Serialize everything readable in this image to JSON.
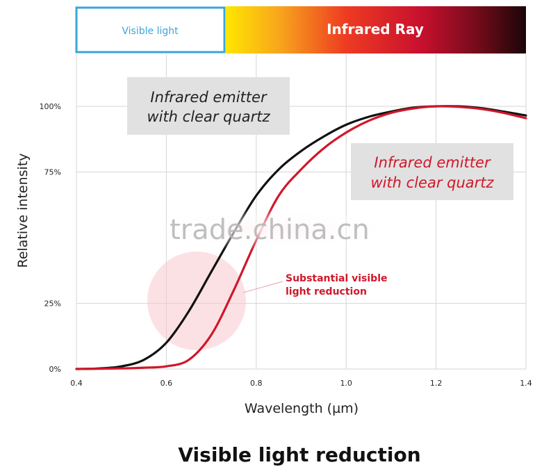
{
  "chart_data": {
    "type": "line",
    "title": "Visible light reduction",
    "xlabel": "Wavelength (µm)",
    "ylabel": "Relative intensity",
    "xlim": [
      0.4,
      1.4
    ],
    "ylim": [
      0,
      100
    ],
    "x_ticks": [
      "0.4",
      "0.6",
      "0.8",
      "1.0",
      "1.2",
      "1.4"
    ],
    "y_ticks": [
      {
        "value": 0,
        "label": "0%"
      },
      {
        "value": 25,
        "label": "25%"
      },
      {
        "value": 75,
        "label": "75%"
      },
      {
        "value": 100,
        "label": "100%"
      }
    ],
    "grid": true,
    "bands": {
      "visible_label": "Visible light",
      "infrared_label": "Infrared Ray"
    },
    "series": [
      {
        "name": "Infrared emitter with clear quartz",
        "color": "#111111",
        "points": [
          [
            0.4,
            0
          ],
          [
            0.45,
            0.2
          ],
          [
            0.5,
            1
          ],
          [
            0.55,
            3.5
          ],
          [
            0.6,
            10
          ],
          [
            0.65,
            22
          ],
          [
            0.7,
            37
          ],
          [
            0.75,
            52
          ],
          [
            0.8,
            66
          ],
          [
            0.85,
            76
          ],
          [
            0.9,
            83
          ],
          [
            0.95,
            88.5
          ],
          [
            1.0,
            93
          ],
          [
            1.05,
            96
          ],
          [
            1.1,
            98
          ],
          [
            1.15,
            99.5
          ],
          [
            1.2,
            100
          ],
          [
            1.25,
            100
          ],
          [
            1.3,
            99.3
          ],
          [
            1.35,
            98
          ],
          [
            1.4,
            96.5
          ]
        ]
      },
      {
        "name": "Infrared emitter with clear quartz",
        "color": "#d0172a",
        "points": [
          [
            0.4,
            0
          ],
          [
            0.5,
            0.2
          ],
          [
            0.55,
            0.5
          ],
          [
            0.6,
            1
          ],
          [
            0.65,
            3.5
          ],
          [
            0.7,
            13
          ],
          [
            0.75,
            30
          ],
          [
            0.8,
            49
          ],
          [
            0.85,
            66
          ],
          [
            0.9,
            76
          ],
          [
            0.95,
            84
          ],
          [
            1.0,
            90
          ],
          [
            1.05,
            94.5
          ],
          [
            1.1,
            97.5
          ],
          [
            1.15,
            99.2
          ],
          [
            1.2,
            100
          ],
          [
            1.25,
            99.8
          ],
          [
            1.3,
            99
          ],
          [
            1.35,
            97.5
          ],
          [
            1.4,
            95.5
          ]
        ]
      }
    ],
    "annotations": {
      "black_label_line1": "Infrared emitter",
      "black_label_line2": "with clear quartz",
      "red_label_line1": "Infrared emitter",
      "red_label_line2": "with clear quartz",
      "note_line1": "Substantial visible",
      "note_line2": "light reduction"
    },
    "watermark": "trade.china.cn"
  }
}
